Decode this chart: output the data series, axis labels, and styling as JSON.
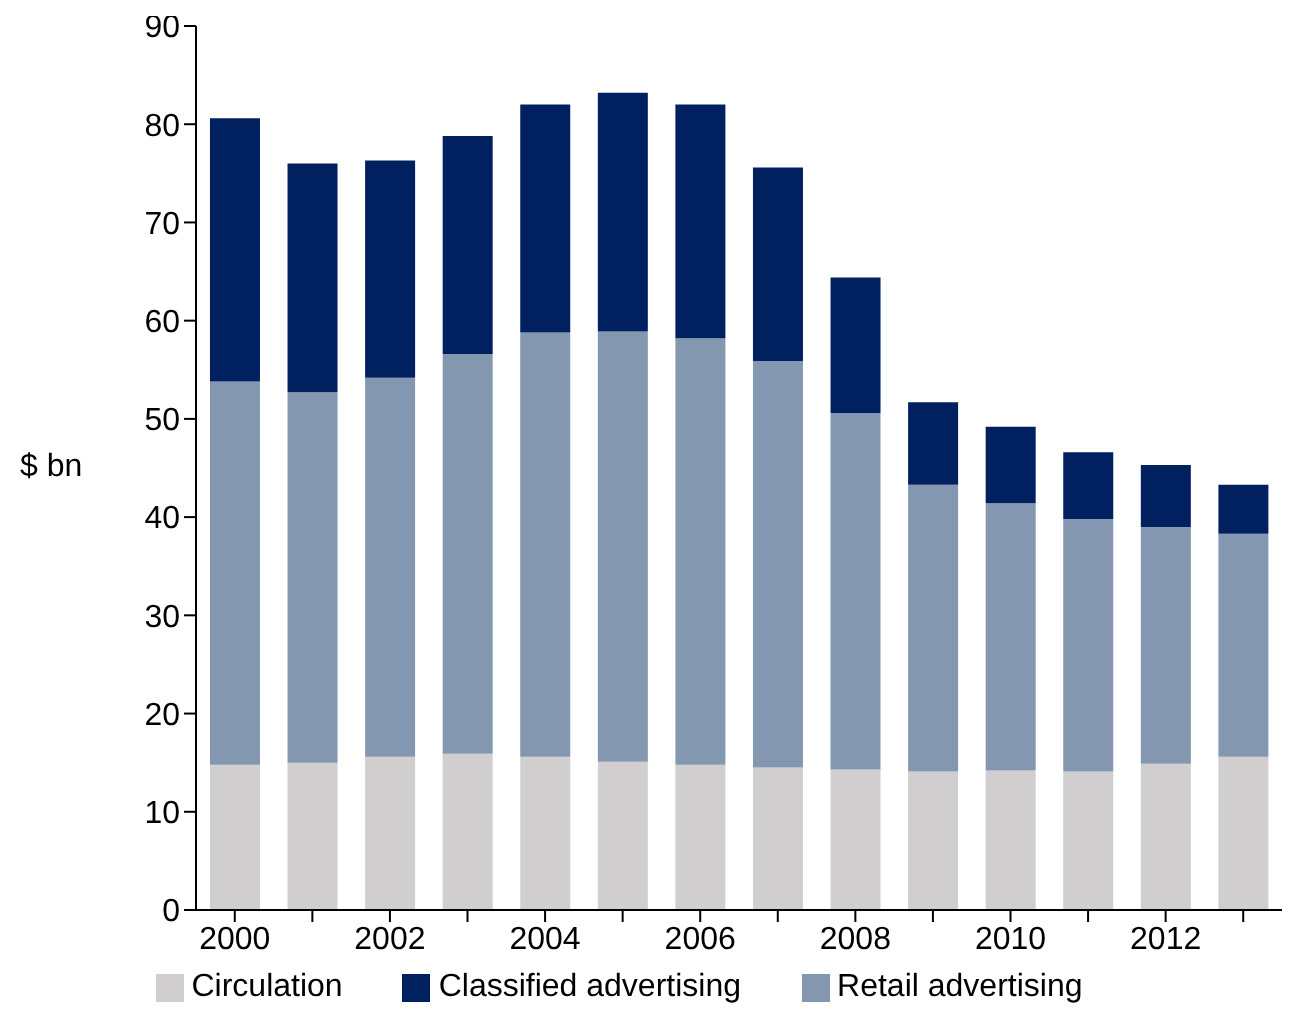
{
  "chart_data": {
    "type": "bar",
    "stacked": true,
    "ylabel": "$ bn",
    "categories": [
      "2000",
      null,
      "2002",
      null,
      "2004",
      null,
      "2006",
      null,
      "2008",
      null,
      "2010",
      null,
      "2012",
      null
    ],
    "series": [
      {
        "name": "Circulation",
        "color": "#d0cece",
        "values": [
          14.8,
          15.0,
          15.6,
          15.9,
          15.6,
          15.1,
          14.8,
          14.5,
          14.3,
          14.1,
          14.2,
          14.1,
          14.9,
          15.6
        ]
      },
      {
        "name": "Retail advertising",
        "color": "#8497b0",
        "values": [
          39.0,
          37.7,
          38.6,
          40.7,
          43.2,
          43.8,
          43.4,
          41.4,
          36.3,
          29.2,
          27.2,
          25.7,
          24.1,
          22.7
        ]
      },
      {
        "name": "Classified advertising",
        "color": "#002060",
        "values": [
          26.8,
          23.3,
          22.1,
          22.2,
          23.2,
          24.3,
          23.8,
          19.7,
          13.8,
          8.4,
          7.8,
          6.8,
          6.3,
          5.0
        ]
      }
    ],
    "ylim": [
      0,
      90
    ],
    "yticks": [
      0,
      10,
      20,
      30,
      40,
      50,
      60,
      70,
      80,
      90
    ],
    "grid": false,
    "legend": "bottom"
  }
}
